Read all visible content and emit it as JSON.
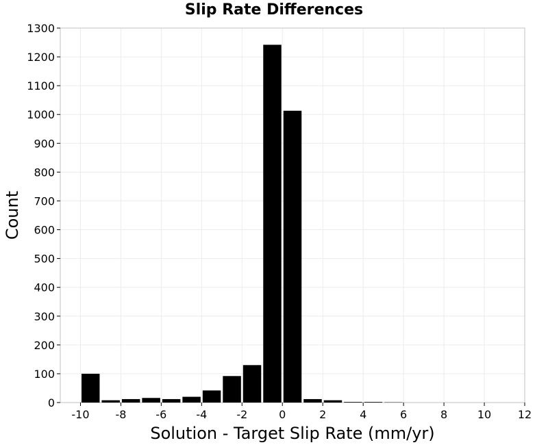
{
  "chart_data": {
    "type": "bar",
    "title": "Slip Rate Differences",
    "xlabel": "Solution - Target Slip Rate (mm/yr)",
    "ylabel": "Count",
    "xlim": [
      -11,
      12
    ],
    "ylim": [
      0,
      1300
    ],
    "xticks": [
      -10,
      -8,
      -6,
      -4,
      -2,
      0,
      2,
      4,
      6,
      8,
      10,
      12
    ],
    "yticks": [
      0,
      100,
      200,
      300,
      400,
      500,
      600,
      700,
      800,
      900,
      1000,
      1100,
      1200,
      1300
    ],
    "grid": true,
    "bin_width": 1,
    "bar_color": "#000000",
    "bins": [
      {
        "x": -9.5,
        "value": 100
      },
      {
        "x": -8.5,
        "value": 8
      },
      {
        "x": -7.5,
        "value": 12
      },
      {
        "x": -6.5,
        "value": 16
      },
      {
        "x": -5.5,
        "value": 12
      },
      {
        "x": -4.5,
        "value": 20
      },
      {
        "x": -3.5,
        "value": 42
      },
      {
        "x": -2.5,
        "value": 92
      },
      {
        "x": -1.5,
        "value": 130
      },
      {
        "x": -0.5,
        "value": 1242
      },
      {
        "x": 0.5,
        "value": 1013
      },
      {
        "x": 1.5,
        "value": 12
      },
      {
        "x": 2.5,
        "value": 8
      },
      {
        "x": 3.5,
        "value": 2
      },
      {
        "x": 4.5,
        "value": 2
      },
      {
        "x": 5.5,
        "value": 1
      }
    ]
  }
}
